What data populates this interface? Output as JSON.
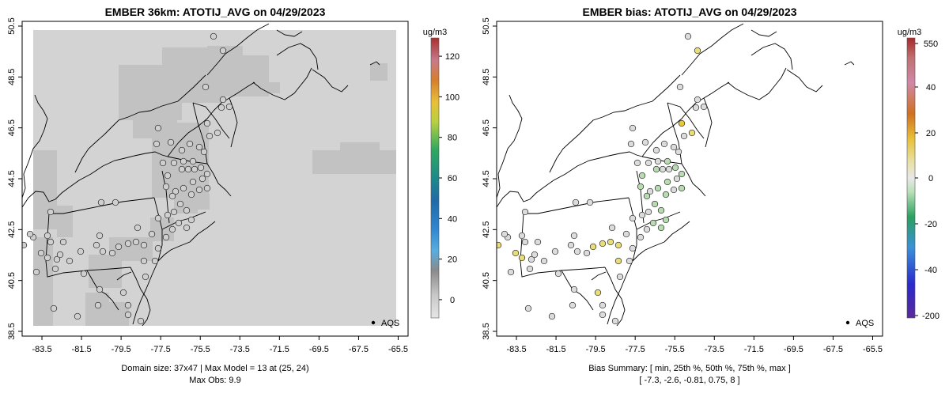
{
  "chart_data": [
    {
      "type": "map",
      "title": "EMBER 36km: ATOTIJ_AVG on 04/29/2023",
      "x_ticks": [
        "-83.5",
        "-81.5",
        "-79.5",
        "-77.5",
        "-75.5",
        "-73.5",
        "-71.5",
        "-69.5",
        "-67.5",
        "-65.5"
      ],
      "y_ticks": [
        "38.5",
        "40.5",
        "42.5",
        "44.5",
        "46.5",
        "48.5",
        "50.5"
      ],
      "xlim": [
        -84.5,
        -65.0
      ],
      "ylim": [
        38.5,
        50.5
      ],
      "colorbar": {
        "units": "ug/m3",
        "ticks": [
          "0",
          "20",
          "40",
          "60",
          "80",
          "100",
          "120"
        ],
        "range": [
          -9,
          129
        ]
      },
      "legend": "AQS",
      "footer_lines": [
        "Domain size: 37x47 | Max Model = 13 at (25, 24)",
        "Max Obs: 9.9"
      ]
    },
    {
      "type": "map",
      "title": "EMBER bias: ATOTIJ_AVG on 04/29/2023",
      "x_ticks": [
        "-83.5",
        "-81.5",
        "-79.5",
        "-77.5",
        "-75.5",
        "-73.5",
        "-71.5",
        "-69.5",
        "-67.5",
        "-65.5"
      ],
      "y_ticks": [
        "38.5",
        "40.5",
        "42.5",
        "44.5",
        "46.5",
        "48.5",
        "50.5"
      ],
      "xlim": [
        -84.5,
        -65.0
      ],
      "ylim": [
        38.5,
        50.5
      ],
      "colorbar": {
        "units": "ug/m3",
        "ticks": [
          "550",
          "40",
          "20",
          "0",
          "-20",
          "-40",
          "-200"
        ]
      },
      "legend": "AQS",
      "footer_lines": [
        "Bias Summary: [ min, 25th %, 50th %, 75th %, max ]",
        "[ -7.3,   -2.6,   -0.81,   0.75,   8 ]"
      ],
      "bias_summary": {
        "min": -7.3,
        "p25": -2.6,
        "p50": -0.81,
        "p75": 0.75,
        "max": 8
      }
    }
  ],
  "colors": {
    "domain_fill": "#d3d3d3",
    "domain_dark": "#c2c2c2",
    "bias_positive": "#e8dd7a",
    "bias_negative": "#b8dcb0",
    "bias_zero": "#dcdcdc"
  }
}
